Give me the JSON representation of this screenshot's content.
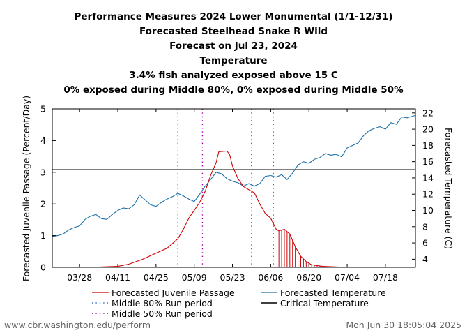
{
  "chart_data": {
    "type": "line",
    "title_lines": [
      "Performance Measures 2024 Lower Monumental (1/1-12/31)",
      "Forecasted Steelhead Snake R Wild",
      "Forecast on Jul 23, 2024",
      "Temperature",
      "3.4% fish analyzed exposed above 15 C",
      "0% exposed during Middle 80%, 0% exposed during Middle 50%"
    ],
    "ylabel": "Forecasted Juvenile Passage (Percent/Day)",
    "y2label": "Forecasted Temperature (C)",
    "ylim": [
      0,
      5
    ],
    "y2lim": [
      3,
      22.5
    ],
    "y_ticks": [
      0,
      1,
      2,
      3,
      4,
      5
    ],
    "y2_ticks": [
      4,
      6,
      8,
      10,
      12,
      14,
      16,
      18,
      20,
      22
    ],
    "x_start": "2024-03-18",
    "x_end": "2024-07-29",
    "x_ticks": [
      {
        "date": "2024-03-28",
        "label": "03/28"
      },
      {
        "date": "2024-04-11",
        "label": "04/11"
      },
      {
        "date": "2024-04-25",
        "label": "04/25"
      },
      {
        "date": "2024-05-09",
        "label": "05/09"
      },
      {
        "date": "2024-05-23",
        "label": "05/23"
      },
      {
        "date": "2024-06-06",
        "label": "06/06"
      },
      {
        "date": "2024-06-20",
        "label": "06/20"
      },
      {
        "date": "2024-07-04",
        "label": "07/04"
      },
      {
        "date": "2024-07-18",
        "label": "07/18"
      }
    ],
    "critical_temperature": 15,
    "shade_from": "2024-06-09",
    "middle_80": [
      "2024-05-03",
      "2024-06-07"
    ],
    "middle_50": [
      "2024-05-12",
      "2024-05-30"
    ],
    "series": [
      {
        "name": "Forecasted Juvenile Passage",
        "axis": "left",
        "color": "#cc0000",
        "points": [
          [
            "2024-03-18",
            0
          ],
          [
            "2024-03-28",
            0
          ],
          [
            "2024-04-04",
            0.01
          ],
          [
            "2024-04-11",
            0.03
          ],
          [
            "2024-04-15",
            0.1
          ],
          [
            "2024-04-20",
            0.25
          ],
          [
            "2024-04-25",
            0.45
          ],
          [
            "2024-04-29",
            0.6
          ],
          [
            "2024-05-01",
            0.75
          ],
          [
            "2024-05-03",
            0.9
          ],
          [
            "2024-05-05",
            1.2
          ],
          [
            "2024-05-07",
            1.55
          ],
          [
            "2024-05-09",
            1.8
          ],
          [
            "2024-05-11",
            2.05
          ],
          [
            "2024-05-13",
            2.4
          ],
          [
            "2024-05-15",
            2.9
          ],
          [
            "2024-05-17",
            3.3
          ],
          [
            "2024-05-18",
            3.65
          ],
          [
            "2024-05-21",
            3.67
          ],
          [
            "2024-05-22",
            3.55
          ],
          [
            "2024-05-23",
            3.2
          ],
          [
            "2024-05-25",
            2.8
          ],
          [
            "2024-05-27",
            2.55
          ],
          [
            "2024-05-29",
            2.45
          ],
          [
            "2024-05-31",
            2.35
          ],
          [
            "2024-06-02",
            2.0
          ],
          [
            "2024-06-04",
            1.7
          ],
          [
            "2024-06-06",
            1.55
          ],
          [
            "2024-06-08",
            1.2
          ],
          [
            "2024-06-09",
            1.15
          ],
          [
            "2024-06-11",
            1.2
          ],
          [
            "2024-06-13",
            1.05
          ],
          [
            "2024-06-15",
            0.65
          ],
          [
            "2024-06-17",
            0.35
          ],
          [
            "2024-06-19",
            0.18
          ],
          [
            "2024-06-21",
            0.08
          ],
          [
            "2024-06-25",
            0.03
          ],
          [
            "2024-07-01",
            0.01
          ],
          [
            "2024-07-04",
            0
          ]
        ]
      },
      {
        "name": "Forecasted Temperature",
        "axis": "right",
        "color": "#1a6fa8",
        "points": [
          [
            "2024-03-18",
            6.8
          ],
          [
            "2024-03-20",
            6.9
          ],
          [
            "2024-03-22",
            7.1
          ],
          [
            "2024-03-24",
            7.6
          ],
          [
            "2024-03-26",
            7.9
          ],
          [
            "2024-03-28",
            8.1
          ],
          [
            "2024-03-30",
            8.9
          ],
          [
            "2024-04-01",
            9.3
          ],
          [
            "2024-04-03",
            9.5
          ],
          [
            "2024-04-05",
            9.0
          ],
          [
            "2024-04-07",
            8.9
          ],
          [
            "2024-04-09",
            9.5
          ],
          [
            "2024-04-11",
            10.0
          ],
          [
            "2024-04-13",
            10.3
          ],
          [
            "2024-04-15",
            10.2
          ],
          [
            "2024-04-17",
            10.7
          ],
          [
            "2024-04-19",
            11.9
          ],
          [
            "2024-04-21",
            11.3
          ],
          [
            "2024-04-23",
            10.7
          ],
          [
            "2024-04-25",
            10.5
          ],
          [
            "2024-04-27",
            11.0
          ],
          [
            "2024-04-29",
            11.4
          ],
          [
            "2024-05-01",
            11.7
          ],
          [
            "2024-05-03",
            12.1
          ],
          [
            "2024-05-05",
            11.8
          ],
          [
            "2024-05-07",
            11.4
          ],
          [
            "2024-05-09",
            11.1
          ],
          [
            "2024-05-11",
            12.0
          ],
          [
            "2024-05-13",
            13.0
          ],
          [
            "2024-05-15",
            13.8
          ],
          [
            "2024-05-17",
            14.7
          ],
          [
            "2024-05-19",
            14.5
          ],
          [
            "2024-05-21",
            13.9
          ],
          [
            "2024-05-23",
            13.6
          ],
          [
            "2024-05-25",
            13.4
          ],
          [
            "2024-05-27",
            13.0
          ],
          [
            "2024-05-29",
            13.3
          ],
          [
            "2024-05-31",
            13.0
          ],
          [
            "2024-06-02",
            13.3
          ],
          [
            "2024-06-04",
            14.2
          ],
          [
            "2024-06-06",
            14.3
          ],
          [
            "2024-06-08",
            14.1
          ],
          [
            "2024-06-10",
            14.4
          ],
          [
            "2024-06-12",
            13.8
          ],
          [
            "2024-06-14",
            14.6
          ],
          [
            "2024-06-16",
            15.6
          ],
          [
            "2024-06-18",
            16.0
          ],
          [
            "2024-06-20",
            15.8
          ],
          [
            "2024-06-22",
            16.3
          ],
          [
            "2024-06-24",
            16.5
          ],
          [
            "2024-06-26",
            17.0
          ],
          [
            "2024-06-28",
            16.8
          ],
          [
            "2024-06-30",
            16.9
          ],
          [
            "2024-07-02",
            16.6
          ],
          [
            "2024-07-04",
            17.7
          ],
          [
            "2024-07-06",
            18.0
          ],
          [
            "2024-07-08",
            18.3
          ],
          [
            "2024-07-10",
            19.2
          ],
          [
            "2024-07-12",
            19.8
          ],
          [
            "2024-07-14",
            20.1
          ],
          [
            "2024-07-16",
            20.3
          ],
          [
            "2024-07-18",
            20.0
          ],
          [
            "2024-07-20",
            20.8
          ],
          [
            "2024-07-22",
            20.6
          ],
          [
            "2024-07-24",
            21.5
          ],
          [
            "2024-07-26",
            21.4
          ],
          [
            "2024-07-28",
            21.6
          ],
          [
            "2024-07-29",
            21.7
          ]
        ]
      }
    ],
    "legend": [
      {
        "label": "Forecasted Juvenile Passage",
        "style": "solid",
        "color": "#cc0000"
      },
      {
        "label": "Forecasted Temperature",
        "style": "solid",
        "color": "#1a6fa8"
      },
      {
        "label": "Middle 80% Run period",
        "style": "dotted",
        "color": "#3a6fd0"
      },
      {
        "label": "Critical Temperature",
        "style": "solid",
        "color": "#000000"
      },
      {
        "label": "Middle 50% Run period",
        "style": "dotted",
        "color": "#aa00aa"
      }
    ],
    "grid": false,
    "legend_placement": "bottom"
  },
  "footer": {
    "left": "www.cbr.washington.edu/perform",
    "right": "Mon Jun 30 18:05:04 2025"
  }
}
